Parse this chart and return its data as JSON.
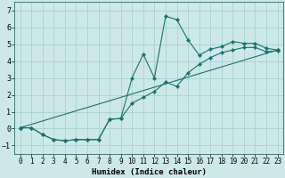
{
  "xlabel": "Humidex (Indice chaleur)",
  "xlim": [
    -0.5,
    23.5
  ],
  "ylim": [
    -1.5,
    7.5
  ],
  "xticks": [
    0,
    1,
    2,
    3,
    4,
    5,
    6,
    7,
    8,
    9,
    10,
    11,
    12,
    13,
    14,
    15,
    16,
    17,
    18,
    19,
    20,
    21,
    22,
    23
  ],
  "yticks": [
    -1,
    0,
    1,
    2,
    3,
    4,
    5,
    6,
    7
  ],
  "bg_color": "#cde8e8",
  "grid_color": "#aad0d0",
  "line_color": "#1a7070",
  "line1_x": [
    0,
    1,
    2,
    3,
    4,
    5,
    6,
    7,
    8,
    9,
    10,
    11,
    12,
    13,
    14,
    15,
    16,
    17,
    18,
    19,
    20,
    21,
    22,
    23
  ],
  "line1_y": [
    0.05,
    0.05,
    -0.35,
    -0.65,
    -0.72,
    -0.65,
    -0.65,
    -0.65,
    0.55,
    0.6,
    3.0,
    4.4,
    3.0,
    6.65,
    6.45,
    5.25,
    4.35,
    4.7,
    4.85,
    5.15,
    5.05,
    5.05,
    4.75,
    4.65
  ],
  "line2_x": [
    0,
    1,
    2,
    3,
    4,
    5,
    6,
    7,
    8,
    9,
    10,
    11,
    12,
    13,
    14,
    15,
    16,
    17,
    18,
    19,
    20,
    21,
    22,
    23
  ],
  "line2_y": [
    0.05,
    0.05,
    -0.35,
    -0.65,
    -0.72,
    -0.65,
    -0.65,
    -0.65,
    0.55,
    0.6,
    1.5,
    1.85,
    2.2,
    2.75,
    2.5,
    3.3,
    3.8,
    4.2,
    4.5,
    4.65,
    4.8,
    4.8,
    4.55,
    4.6
  ],
  "line3_x": [
    0,
    23
  ],
  "line3_y": [
    0.05,
    4.65
  ]
}
